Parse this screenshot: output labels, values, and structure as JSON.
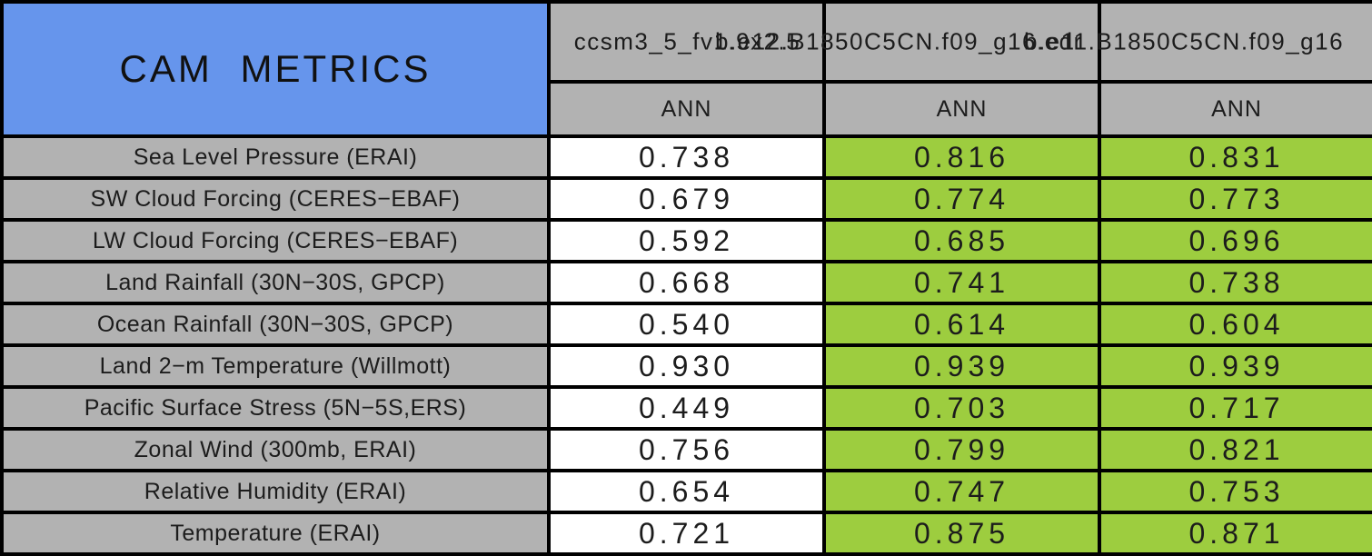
{
  "title": "CAM METRICS",
  "columns": [
    {
      "model": "ccsm3_5_fv1.9x2.5",
      "season": "ANN"
    },
    {
      "model": "b.e12.B1850C5CN.f09_g16.edr",
      "season": "ANN"
    },
    {
      "model": "b.e11.B1850C5CN.f09_g16",
      "season": "ANN"
    }
  ],
  "rows": [
    {
      "label": "Sea Level Pressure (ERAI)",
      "values": [
        "0.738",
        "0.816",
        "0.831"
      ]
    },
    {
      "label": "SW Cloud Forcing (CERES−EBAF)",
      "values": [
        "0.679",
        "0.774",
        "0.773"
      ]
    },
    {
      "label": "LW Cloud Forcing (CERES−EBAF)",
      "values": [
        "0.592",
        "0.685",
        "0.696"
      ]
    },
    {
      "label": "Land Rainfall (30N−30S, GPCP)",
      "values": [
        "0.668",
        "0.741",
        "0.738"
      ]
    },
    {
      "label": "Ocean Rainfall (30N−30S, GPCP)",
      "values": [
        "0.540",
        "0.614",
        "0.604"
      ]
    },
    {
      "label": "Land 2−m Temperature (Willmott)",
      "values": [
        "0.930",
        "0.939",
        "0.939"
      ]
    },
    {
      "label": "Pacific Surface Stress (5N−5S,ERS)",
      "values": [
        "0.449",
        "0.703",
        "0.717"
      ]
    },
    {
      "label": "Zonal Wind (300mb, ERAI)",
      "values": [
        "0.756",
        "0.799",
        "0.821"
      ]
    },
    {
      "label": "Relative Humidity (ERAI)",
      "values": [
        "0.654",
        "0.747",
        "0.753"
      ]
    },
    {
      "label": "Temperature (ERAI)",
      "values": [
        "0.721",
        "0.875",
        "0.871"
      ]
    }
  ],
  "colors": {
    "title_blue": "#6695EC",
    "header_gray": "#B2B2B2",
    "highlight_green": "#9DCD3F",
    "plain_white": "#FFFFFF",
    "border_black": "#000000"
  },
  "chart_data": {
    "type": "table",
    "title": "CAM METRICS",
    "categories": [
      "Sea Level Pressure (ERAI)",
      "SW Cloud Forcing (CERES−EBAF)",
      "LW Cloud Forcing (CERES−EBAF)",
      "Land Rainfall (30N−30S, GPCP)",
      "Ocean Rainfall (30N−30S, GPCP)",
      "Land 2−m Temperature (Willmott)",
      "Pacific Surface Stress (5N−5S,ERS)",
      "Zonal Wind (300mb, ERAI)",
      "Relative Humidity (ERAI)",
      "Temperature (ERAI)"
    ],
    "series": [
      {
        "name": "ccsm3_5_fv1.9x2.5",
        "season": "ANN",
        "values": [
          0.738,
          0.679,
          0.592,
          0.668,
          0.54,
          0.93,
          0.449,
          0.756,
          0.654,
          0.721
        ]
      },
      {
        "name": "b.e12.B1850C5CN.f09_g16.edr",
        "season": "ANN",
        "values": [
          0.816,
          0.774,
          0.685,
          0.741,
          0.614,
          0.939,
          0.703,
          0.799,
          0.747,
          0.875
        ]
      },
      {
        "name": "b.e11.B1850C5CN.f09_g16",
        "season": "ANN",
        "values": [
          0.831,
          0.773,
          0.696,
          0.738,
          0.604,
          0.939,
          0.717,
          0.821,
          0.753,
          0.871
        ]
      }
    ],
    "layout_hints": {
      "first_value_column_bg": "white",
      "other_value_columns_bg": "yellow-green",
      "header_bg": "gray",
      "title_bg": "cornflower-blue",
      "grid": "black 4px cell borders"
    }
  }
}
